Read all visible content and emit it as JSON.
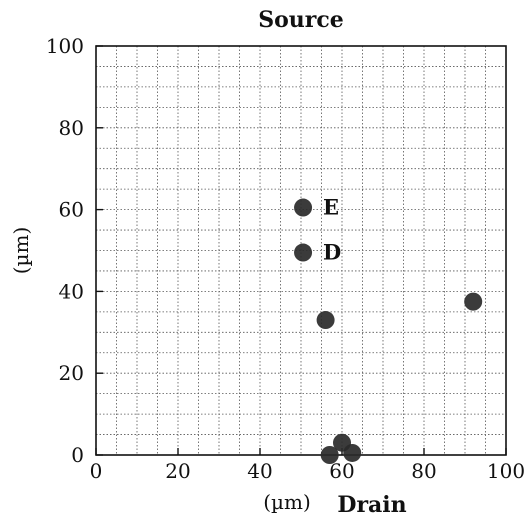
{
  "chart_data": {
    "type": "scatter",
    "title": "Source",
    "bottom_label": "Drain",
    "xlabel": "(µm)",
    "ylabel": "(µm)",
    "xlim": [
      0,
      100
    ],
    "ylim": [
      0,
      100
    ],
    "x_ticks": [
      0,
      20,
      40,
      60,
      80,
      100
    ],
    "y_ticks": [
      0,
      20,
      40,
      60,
      80,
      100
    ],
    "x_tick_labels": [
      "0",
      "20",
      "40",
      "60",
      "80",
      "100"
    ],
    "y_tick_labels": [
      "0",
      "20",
      "40",
      "60",
      "80",
      "100"
    ],
    "grid": true,
    "grid_step": 5,
    "point_color": "#2a2a2a",
    "points": [
      {
        "x": 50.5,
        "y": 60.5,
        "label": "E"
      },
      {
        "x": 50.5,
        "y": 49.5,
        "label": "D"
      },
      {
        "x": 56,
        "y": 33,
        "label": ""
      },
      {
        "x": 92,
        "y": 37.5,
        "label": ""
      },
      {
        "x": 60,
        "y": 3,
        "label": ""
      },
      {
        "x": 62.5,
        "y": 0.5,
        "label": ""
      },
      {
        "x": 57,
        "y": 0,
        "label": ""
      }
    ]
  }
}
